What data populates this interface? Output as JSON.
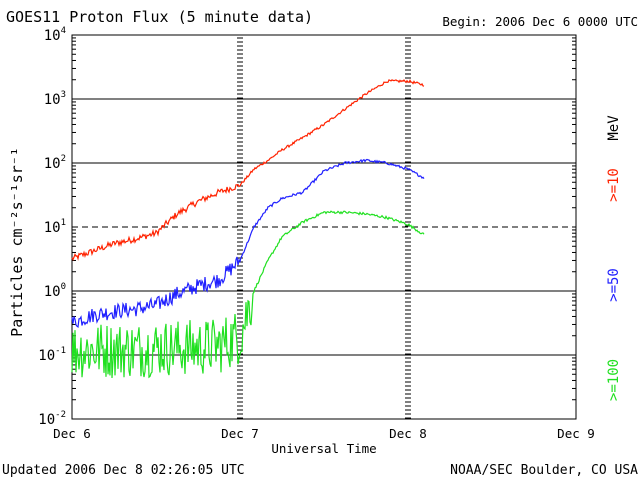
{
  "header": {
    "title": "GOES11 Proton Flux (5 minute data)",
    "begin": "Begin: 2006 Dec 6 0000 UTC"
  },
  "footer": {
    "updated": "Updated 2006 Dec  8 02:26:05 UTC",
    "credit": "NOAA/SEC Boulder, CO USA"
  },
  "chart_data": {
    "type": "line",
    "title": "GOES11 Proton Flux (5 minute data)",
    "xlabel": "Universal Time",
    "ylabel": "Particles cm⁻²s⁻¹sr⁻¹",
    "y_scale": "log",
    "ylim": [
      0.01,
      10000
    ],
    "xlim": [
      "Dec 6",
      "Dec 9"
    ],
    "x_ticks": [
      "Dec 6",
      "Dec 7",
      "Dec 8",
      "Dec 9"
    ],
    "y_ticks": [
      {
        "base": "10",
        "exp": "-2",
        "value": 0.01
      },
      {
        "base": "10",
        "exp": "-1",
        "value": 0.1
      },
      {
        "base": "10",
        "exp": "0",
        "value": 1
      },
      {
        "base": "10",
        "exp": "1",
        "value": 10
      },
      {
        "base": "10",
        "exp": "2",
        "value": 100
      },
      {
        "base": "10",
        "exp": "3",
        "value": 1000
      },
      {
        "base": "10",
        "exp": "4",
        "value": 10000
      }
    ],
    "grid": "horizontal lines at each decade; dashed at 10",
    "legend_placement": "right",
    "legend_unit": "MeV",
    "series": [
      {
        "name": ">=10",
        "color": "#ff2200",
        "x": [
          "Dec 6 00:00",
          "Dec 6 03:00",
          "Dec 6 06:00",
          "Dec 6 09:00",
          "Dec 6 12:00",
          "Dec 6 15:00",
          "Dec 6 18:00",
          "Dec 6 21:00",
          "Dec 7 00:00",
          "Dec 7 02:00",
          "Dec 7 04:00",
          "Dec 7 06:00",
          "Dec 7 09:00",
          "Dec 7 12:00",
          "Dec 7 15:00",
          "Dec 7 18:00",
          "Dec 7 21:00",
          "Dec 8 00:00",
          "Dec 8 02:20"
        ],
        "values": [
          3.2,
          4.2,
          5.5,
          6.5,
          8.0,
          16,
          25,
          35,
          45,
          80,
          110,
          160,
          250,
          400,
          700,
          1200,
          1900,
          1900,
          1650
        ]
      },
      {
        "name": ">=50",
        "color": "#2020ff",
        "x": [
          "Dec 6 00:00",
          "Dec 6 03:00",
          "Dec 6 06:00",
          "Dec 6 09:00",
          "Dec 6 12:00",
          "Dec 6 15:00",
          "Dec 6 18:00",
          "Dec 6 21:00",
          "Dec 7 00:00",
          "Dec 7 02:00",
          "Dec 7 04:00",
          "Dec 7 06:00",
          "Dec 7 09:00",
          "Dec 7 12:00",
          "Dec 7 15:00",
          "Dec 7 18:00",
          "Dec 7 21:00",
          "Dec 8 00:00",
          "Dec 8 02:20"
        ],
        "values": [
          0.32,
          0.42,
          0.48,
          0.52,
          0.6,
          0.9,
          1.2,
          1.5,
          3.0,
          10,
          20,
          28,
          35,
          75,
          100,
          110,
          100,
          80,
          58
        ]
      },
      {
        "name": ">=100",
        "color": "#20e020",
        "x": [
          "Dec 6 00:00",
          "Dec 6 03:00",
          "Dec 6 06:00",
          "Dec 6 09:00",
          "Dec 6 12:00",
          "Dec 6 15:00",
          "Dec 6 18:00",
          "Dec 6 21:00",
          "Dec 7 00:00",
          "Dec 7 02:00",
          "Dec 7 04:00",
          "Dec 7 06:00",
          "Dec 7 09:00",
          "Dec 7 12:00",
          "Dec 7 15:00",
          "Dec 7 18:00",
          "Dec 7 21:00",
          "Dec 8 00:00",
          "Dec 8 02:20"
        ],
        "values": [
          0.12,
          0.12,
          0.12,
          0.12,
          0.13,
          0.13,
          0.13,
          0.14,
          0.2,
          1.0,
          3.0,
          7.0,
          12,
          17,
          17,
          16,
          14,
          11,
          7.5
        ]
      }
    ]
  }
}
